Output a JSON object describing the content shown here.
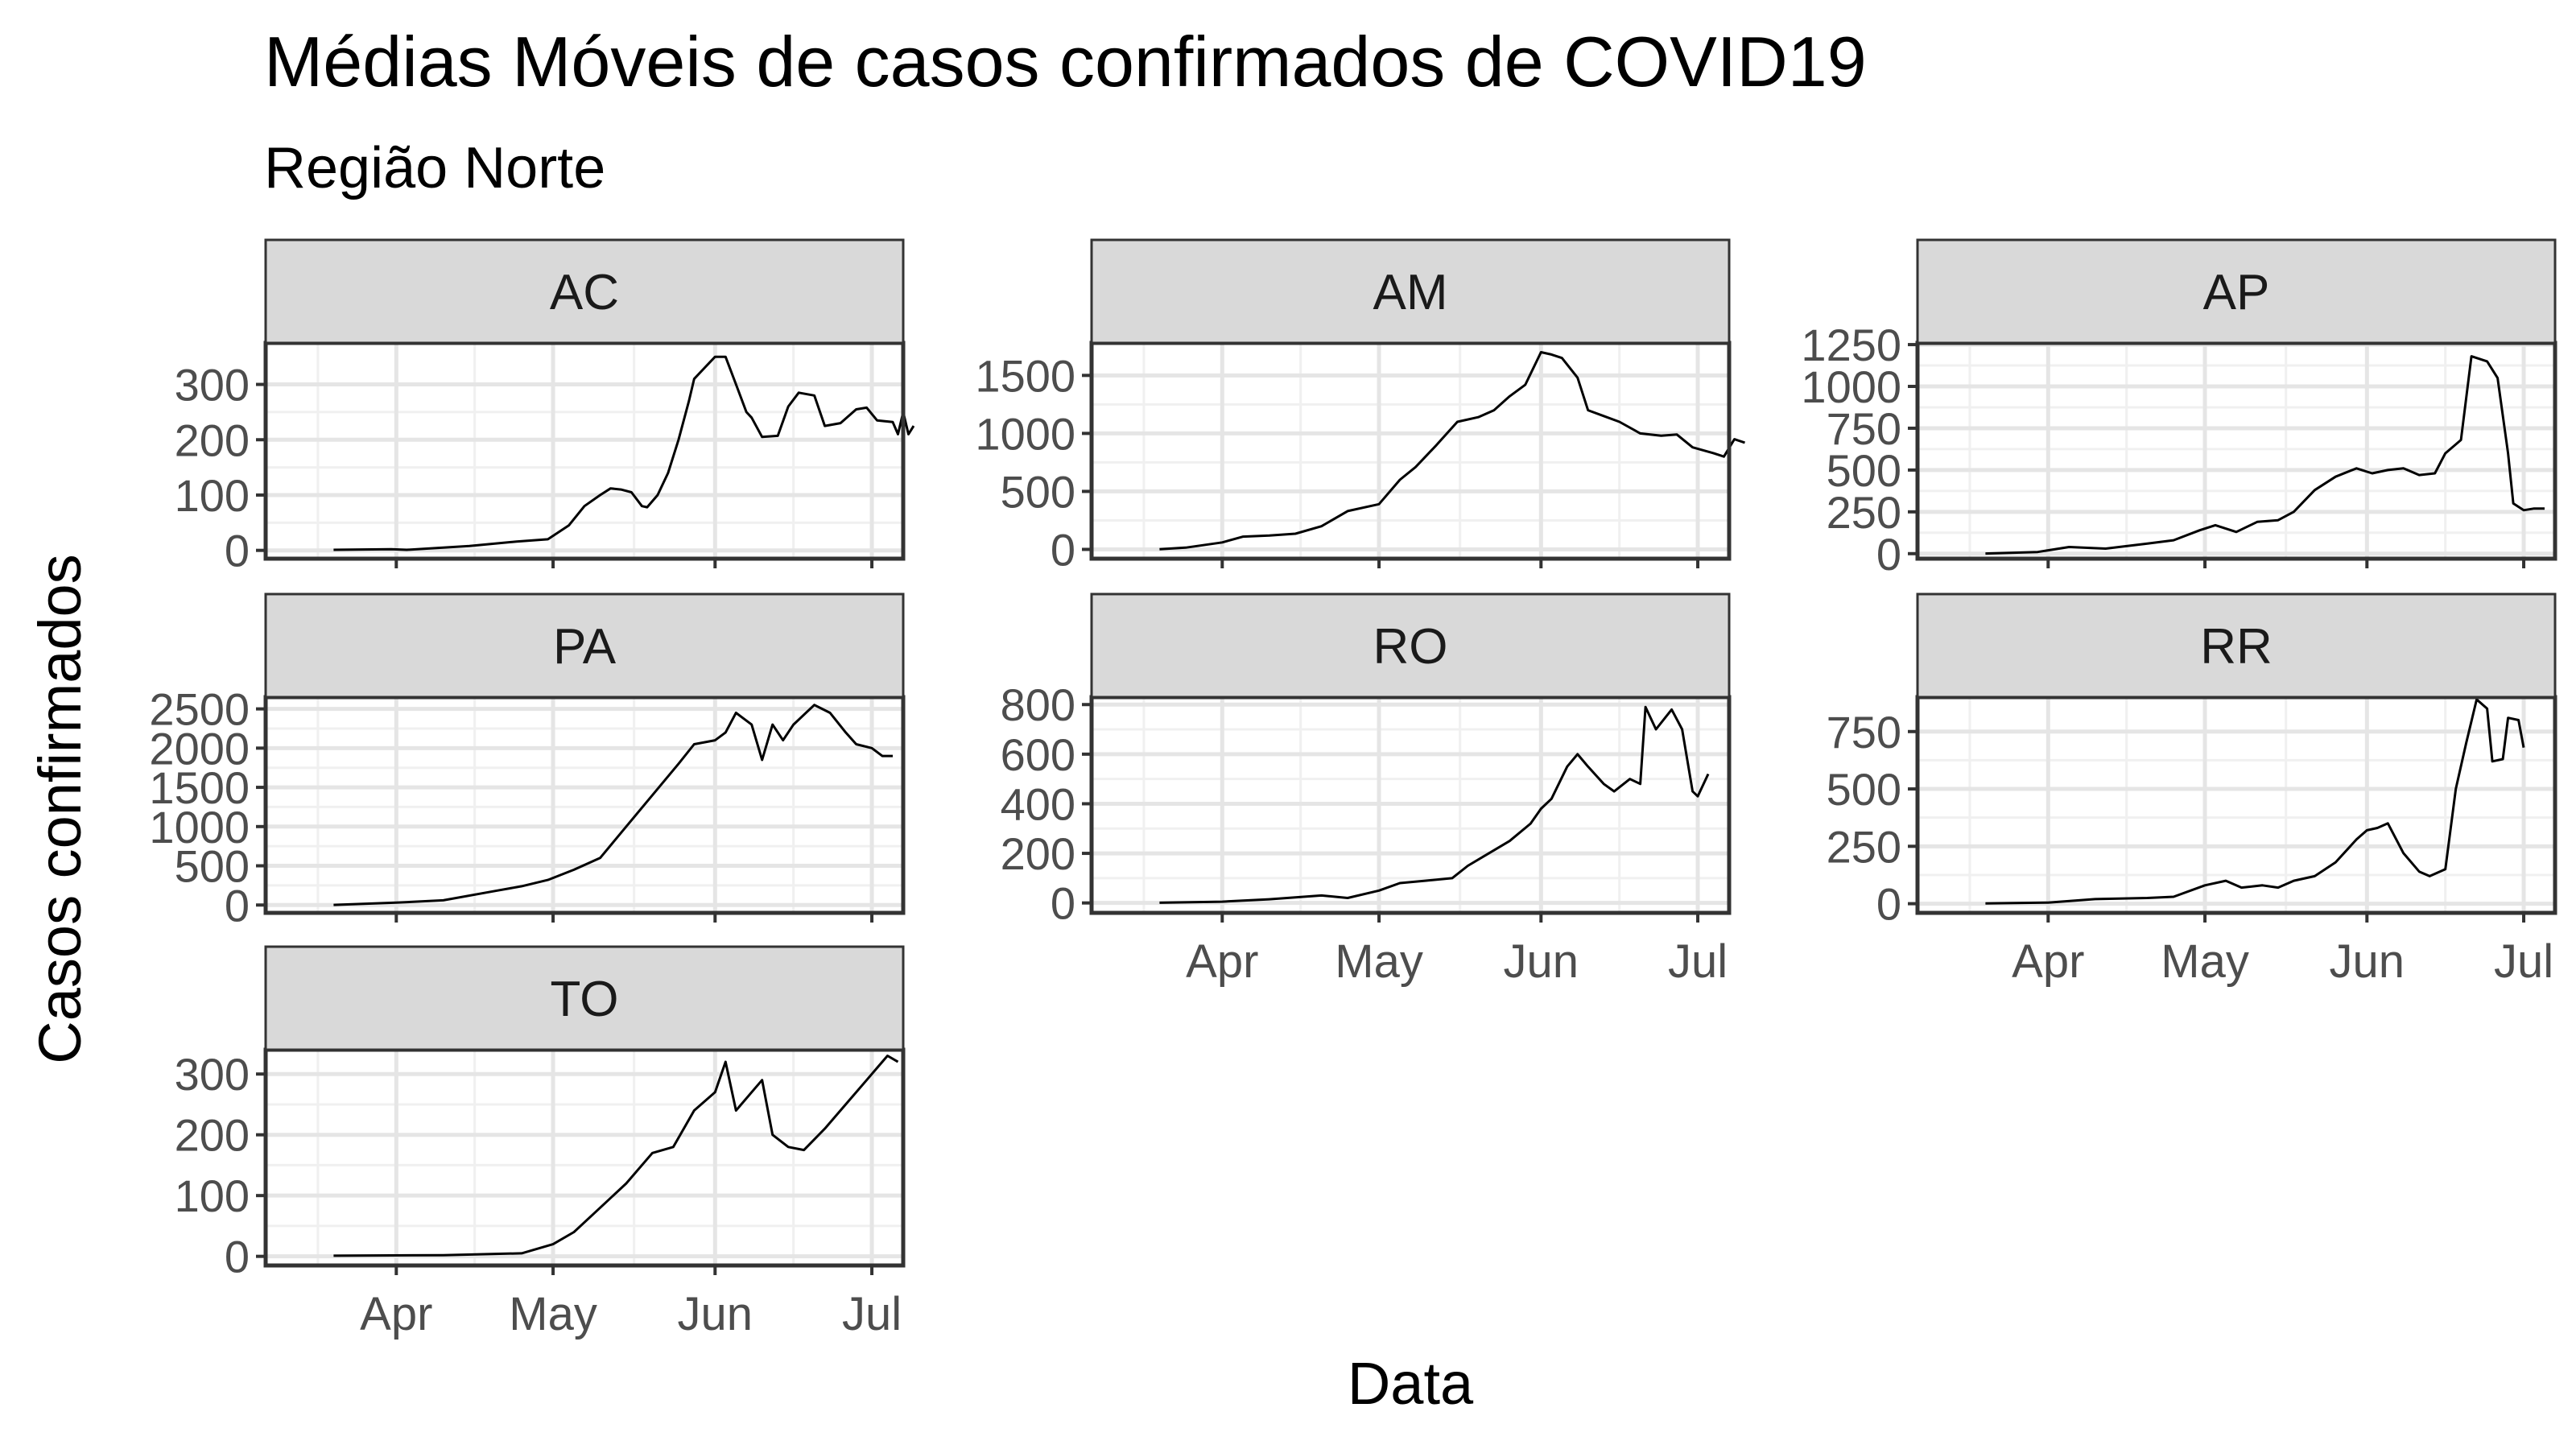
{
  "chart_data": {
    "type": "line",
    "title": "Médias Móveis de casos confirmados de COVID19",
    "subtitle": "Região Norte",
    "xlabel": "Data",
    "ylabel": "Casos confirmados",
    "x_ticks": [
      {
        "date": "2020-04-01",
        "label": "Apr"
      },
      {
        "date": "2020-05-01",
        "label": "May"
      },
      {
        "date": "2020-06-01",
        "label": "Jun"
      },
      {
        "date": "2020-07-01",
        "label": "Jul"
      }
    ],
    "xlim": [
      "2020-03-07",
      "2020-07-07"
    ],
    "grid": true,
    "facets": [
      {
        "name": "AC",
        "ylim": [
          -15,
          375
        ],
        "yticks": [
          0,
          100,
          200,
          300
        ],
        "points": [
          [
            "2020-03-20",
            1
          ],
          [
            "2020-03-31",
            2
          ],
          [
            "2020-04-03",
            1
          ],
          [
            "2020-04-15",
            8
          ],
          [
            "2020-04-24",
            16
          ],
          [
            "2020-04-30",
            20
          ],
          [
            "2020-05-04",
            45
          ],
          [
            "2020-05-07",
            80
          ],
          [
            "2020-05-10",
            100
          ],
          [
            "2020-05-12",
            112
          ],
          [
            "2020-05-14",
            110
          ],
          [
            "2020-05-16",
            105
          ],
          [
            "2020-05-18",
            80
          ],
          [
            "2020-05-19",
            78
          ],
          [
            "2020-05-21",
            100
          ],
          [
            "2020-05-23",
            140
          ],
          [
            "2020-05-25",
            200
          ],
          [
            "2020-05-27",
            270
          ],
          [
            "2020-05-28",
            310
          ],
          [
            "2020-05-30",
            330
          ],
          [
            "2020-06-01",
            350
          ],
          [
            "2020-06-03",
            350
          ],
          [
            "2020-06-05",
            300
          ],
          [
            "2020-06-07",
            250
          ],
          [
            "2020-06-08",
            240
          ],
          [
            "2020-06-10",
            205
          ],
          [
            "2020-06-13",
            207
          ],
          [
            "2020-06-15",
            260
          ],
          [
            "2020-06-17",
            285
          ],
          [
            "2020-06-20",
            280
          ],
          [
            "2020-06-22",
            225
          ],
          [
            "2020-06-25",
            230
          ],
          [
            "2020-06-28",
            255
          ],
          [
            "2020-06-30",
            258
          ],
          [
            "2020-07-02",
            235
          ],
          [
            "2020-07-05",
            232
          ],
          [
            "2020-07-06",
            210
          ],
          [
            "2020-07-07",
            250
          ],
          [
            "2020-07-08",
            210
          ],
          [
            "2020-07-09",
            225
          ]
        ]
      },
      {
        "name": "AM",
        "ylim": [
          -80,
          1780
        ],
        "yticks": [
          0,
          500,
          1000,
          1500
        ],
        "points": [
          [
            "2020-03-20",
            2
          ],
          [
            "2020-03-25",
            15
          ],
          [
            "2020-04-01",
            60
          ],
          [
            "2020-04-05",
            110
          ],
          [
            "2020-04-10",
            120
          ],
          [
            "2020-04-15",
            135
          ],
          [
            "2020-04-20",
            200
          ],
          [
            "2020-04-25",
            330
          ],
          [
            "2020-05-01",
            390
          ],
          [
            "2020-05-05",
            600
          ],
          [
            "2020-05-08",
            710
          ],
          [
            "2020-05-12",
            900
          ],
          [
            "2020-05-16",
            1100
          ],
          [
            "2020-05-20",
            1140
          ],
          [
            "2020-05-23",
            1200
          ],
          [
            "2020-05-26",
            1320
          ],
          [
            "2020-05-29",
            1420
          ],
          [
            "2020-06-01",
            1700
          ],
          [
            "2020-06-03",
            1680
          ],
          [
            "2020-06-05",
            1650
          ],
          [
            "2020-06-08",
            1480
          ],
          [
            "2020-06-10",
            1200
          ],
          [
            "2020-06-13",
            1150
          ],
          [
            "2020-06-16",
            1100
          ],
          [
            "2020-06-20",
            1000
          ],
          [
            "2020-06-24",
            980
          ],
          [
            "2020-06-27",
            990
          ],
          [
            "2020-06-30",
            880
          ],
          [
            "2020-07-04",
            830
          ],
          [
            "2020-07-06",
            800
          ],
          [
            "2020-07-08",
            950
          ],
          [
            "2020-07-10",
            920
          ]
        ]
      },
      {
        "name": "AP",
        "ylim": [
          -30,
          1260
        ],
        "yticks": [
          0,
          250,
          500,
          750,
          1000,
          1250
        ],
        "points": [
          [
            "2020-03-20",
            1
          ],
          [
            "2020-03-30",
            10
          ],
          [
            "2020-04-05",
            40
          ],
          [
            "2020-04-12",
            30
          ],
          [
            "2020-04-20",
            60
          ],
          [
            "2020-04-25",
            80
          ],
          [
            "2020-04-30",
            140
          ],
          [
            "2020-05-03",
            170
          ],
          [
            "2020-05-07",
            130
          ],
          [
            "2020-05-11",
            190
          ],
          [
            "2020-05-15",
            200
          ],
          [
            "2020-05-18",
            250
          ],
          [
            "2020-05-22",
            380
          ],
          [
            "2020-05-26",
            460
          ],
          [
            "2020-05-30",
            510
          ],
          [
            "2020-06-02",
            480
          ],
          [
            "2020-06-05",
            500
          ],
          [
            "2020-06-08",
            510
          ],
          [
            "2020-06-11",
            470
          ],
          [
            "2020-06-14",
            480
          ],
          [
            "2020-06-16",
            600
          ],
          [
            "2020-06-19",
            680
          ],
          [
            "2020-06-21",
            1180
          ],
          [
            "2020-06-24",
            1150
          ],
          [
            "2020-06-26",
            1050
          ],
          [
            "2020-06-28",
            600
          ],
          [
            "2020-06-29",
            300
          ],
          [
            "2020-07-01",
            260
          ],
          [
            "2020-07-03",
            270
          ],
          [
            "2020-07-05",
            270
          ]
        ]
      },
      {
        "name": "PA",
        "ylim": [
          -100,
          2650
        ],
        "yticks": [
          0,
          500,
          1000,
          1500,
          2000,
          2500
        ],
        "points": [
          [
            "2020-03-20",
            2
          ],
          [
            "2020-04-01",
            30
          ],
          [
            "2020-04-10",
            60
          ],
          [
            "2020-04-20",
            180
          ],
          [
            "2020-04-25",
            240
          ],
          [
            "2020-04-30",
            320
          ],
          [
            "2020-05-05",
            450
          ],
          [
            "2020-05-10",
            600
          ],
          [
            "2020-05-15",
            1000
          ],
          [
            "2020-05-20",
            1400
          ],
          [
            "2020-05-25",
            1800
          ],
          [
            "2020-05-28",
            2050
          ],
          [
            "2020-06-01",
            2100
          ],
          [
            "2020-06-03",
            2200
          ],
          [
            "2020-06-05",
            2450
          ],
          [
            "2020-06-08",
            2300
          ],
          [
            "2020-06-10",
            1850
          ],
          [
            "2020-06-12",
            2300
          ],
          [
            "2020-06-14",
            2100
          ],
          [
            "2020-06-16",
            2300
          ],
          [
            "2020-06-20",
            2550
          ],
          [
            "2020-06-23",
            2450
          ],
          [
            "2020-06-26",
            2200
          ],
          [
            "2020-06-28",
            2050
          ],
          [
            "2020-07-01",
            2000
          ],
          [
            "2020-07-03",
            1900
          ],
          [
            "2020-07-05",
            1900
          ]
        ]
      },
      {
        "name": "RO",
        "ylim": [
          -40,
          830
        ],
        "yticks": [
          0,
          200,
          400,
          600,
          800
        ],
        "points": [
          [
            "2020-03-20",
            1
          ],
          [
            "2020-04-01",
            5
          ],
          [
            "2020-04-10",
            15
          ],
          [
            "2020-04-20",
            30
          ],
          [
            "2020-04-25",
            20
          ],
          [
            "2020-05-01",
            50
          ],
          [
            "2020-05-05",
            80
          ],
          [
            "2020-05-10",
            90
          ],
          [
            "2020-05-15",
            100
          ],
          [
            "2020-05-18",
            150
          ],
          [
            "2020-05-22",
            200
          ],
          [
            "2020-05-26",
            250
          ],
          [
            "2020-05-30",
            320
          ],
          [
            "2020-06-01",
            380
          ],
          [
            "2020-06-03",
            420
          ],
          [
            "2020-06-06",
            550
          ],
          [
            "2020-06-08",
            600
          ],
          [
            "2020-06-10",
            550
          ],
          [
            "2020-06-13",
            480
          ],
          [
            "2020-06-15",
            450
          ],
          [
            "2020-06-18",
            500
          ],
          [
            "2020-06-20",
            480
          ],
          [
            "2020-06-21",
            790
          ],
          [
            "2020-06-23",
            700
          ],
          [
            "2020-06-26",
            780
          ],
          [
            "2020-06-28",
            700
          ],
          [
            "2020-06-30",
            450
          ],
          [
            "2020-07-01",
            430
          ],
          [
            "2020-07-03",
            520
          ]
        ]
      },
      {
        "name": "RR",
        "ylim": [
          -40,
          900
        ],
        "yticks": [
          0,
          250,
          500,
          750
        ],
        "points": [
          [
            "2020-03-20",
            1
          ],
          [
            "2020-04-01",
            5
          ],
          [
            "2020-04-10",
            20
          ],
          [
            "2020-04-20",
            25
          ],
          [
            "2020-04-25",
            30
          ],
          [
            "2020-05-01",
            80
          ],
          [
            "2020-05-05",
            100
          ],
          [
            "2020-05-08",
            70
          ],
          [
            "2020-05-12",
            80
          ],
          [
            "2020-05-15",
            70
          ],
          [
            "2020-05-18",
            100
          ],
          [
            "2020-05-22",
            120
          ],
          [
            "2020-05-26",
            180
          ],
          [
            "2020-05-30",
            280
          ],
          [
            "2020-06-01",
            320
          ],
          [
            "2020-06-03",
            330
          ],
          [
            "2020-06-05",
            350
          ],
          [
            "2020-06-08",
            220
          ],
          [
            "2020-06-11",
            140
          ],
          [
            "2020-06-13",
            120
          ],
          [
            "2020-06-16",
            150
          ],
          [
            "2020-06-18",
            500
          ],
          [
            "2020-06-20",
            700
          ],
          [
            "2020-06-22",
            890
          ],
          [
            "2020-06-24",
            850
          ],
          [
            "2020-06-25",
            620
          ],
          [
            "2020-06-27",
            630
          ],
          [
            "2020-06-28",
            810
          ],
          [
            "2020-06-30",
            800
          ],
          [
            "2020-07-01",
            680
          ]
        ]
      },
      {
        "name": "TO",
        "ylim": [
          -15,
          340
        ],
        "yticks": [
          0,
          100,
          200,
          300
        ],
        "points": [
          [
            "2020-03-20",
            1
          ],
          [
            "2020-04-10",
            2
          ],
          [
            "2020-04-25",
            5
          ],
          [
            "2020-05-01",
            20
          ],
          [
            "2020-05-05",
            40
          ],
          [
            "2020-05-10",
            80
          ],
          [
            "2020-05-15",
            120
          ],
          [
            "2020-05-20",
            170
          ],
          [
            "2020-05-24",
            180
          ],
          [
            "2020-05-28",
            240
          ],
          [
            "2020-06-01",
            270
          ],
          [
            "2020-06-03",
            320
          ],
          [
            "2020-06-05",
            240
          ],
          [
            "2020-06-08",
            270
          ],
          [
            "2020-06-10",
            290
          ],
          [
            "2020-06-12",
            200
          ],
          [
            "2020-06-15",
            180
          ],
          [
            "2020-06-18",
            175
          ],
          [
            "2020-06-22",
            210
          ],
          [
            "2020-06-26",
            250
          ],
          [
            "2020-06-30",
            290
          ],
          [
            "2020-07-02",
            310
          ],
          [
            "2020-07-04",
            330
          ],
          [
            "2020-07-06",
            320
          ]
        ]
      }
    ]
  }
}
